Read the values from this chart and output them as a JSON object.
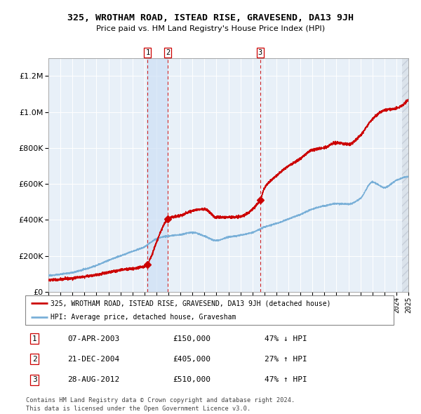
{
  "title": "325, WROTHAM ROAD, ISTEAD RISE, GRAVESEND, DA13 9JH",
  "subtitle": "Price paid vs. HM Land Registry's House Price Index (HPI)",
  "legend_line1": "325, WROTHAM ROAD, ISTEAD RISE, GRAVESEND, DA13 9JH (detached house)",
  "legend_line2": "HPI: Average price, detached house, Gravesham",
  "footer1": "Contains HM Land Registry data © Crown copyright and database right 2024.",
  "footer2": "This data is licensed under the Open Government Licence v3.0.",
  "transactions": [
    {
      "num": 1,
      "date": "07-APR-2003",
      "price": 150000,
      "year": 2003.27,
      "pct": "47%",
      "dir": "↓"
    },
    {
      "num": 2,
      "date": "21-DEC-2004",
      "price": 405000,
      "year": 2004.97,
      "pct": "27%",
      "dir": "↑"
    },
    {
      "num": 3,
      "date": "28-AUG-2012",
      "price": 510000,
      "year": 2012.65,
      "pct": "47%",
      "dir": "↑"
    }
  ],
  "hpi_color": "#7ab0d8",
  "red_line_color": "#cc0000",
  "marker_color": "#cc0000",
  "dashed_color": "#cc0000",
  "plot_bg": "#e8f0f8",
  "grid_color": "#ffffff",
  "ylim_max": 1300000,
  "ylim_min": 0,
  "year_start": 1995,
  "year_end": 2025,
  "hpi_key_years": [
    1995,
    1996,
    1997,
    1998,
    1999,
    2000,
    2001,
    2002,
    2003,
    2004,
    2005,
    2006,
    2007,
    2008,
    2009,
    2010,
    2011,
    2012,
    2013,
    2014,
    2015,
    2016,
    2017,
    2018,
    2019,
    2020,
    2021,
    2022,
    2023,
    2024,
    2024.9
  ],
  "hpi_key_vals": [
    90000,
    98000,
    108000,
    125000,
    147000,
    175000,
    200000,
    225000,
    250000,
    295000,
    310000,
    318000,
    330000,
    310000,
    285000,
    305000,
    315000,
    330000,
    360000,
    380000,
    405000,
    430000,
    460000,
    478000,
    490000,
    488000,
    520000,
    610000,
    580000,
    620000,
    640000
  ],
  "red_key_years": [
    1995,
    1997,
    1999,
    2001,
    2003.25,
    2003.28,
    2004.96,
    2005.1,
    2006,
    2007,
    2008,
    2009,
    2010,
    2011,
    2012.63,
    2012.67,
    2013,
    2014,
    2015,
    2016,
    2017,
    2018,
    2019,
    2020,
    2021,
    2022,
    2023,
    2024,
    2024.9
  ],
  "red_key_vals": [
    65000,
    76000,
    95000,
    122000,
    148000,
    152000,
    404000,
    410000,
    425000,
    450000,
    460000,
    415000,
    415000,
    420000,
    508000,
    514000,
    575000,
    645000,
    700000,
    740000,
    790000,
    800000,
    830000,
    820000,
    870000,
    960000,
    1010000,
    1020000,
    1060000
  ]
}
